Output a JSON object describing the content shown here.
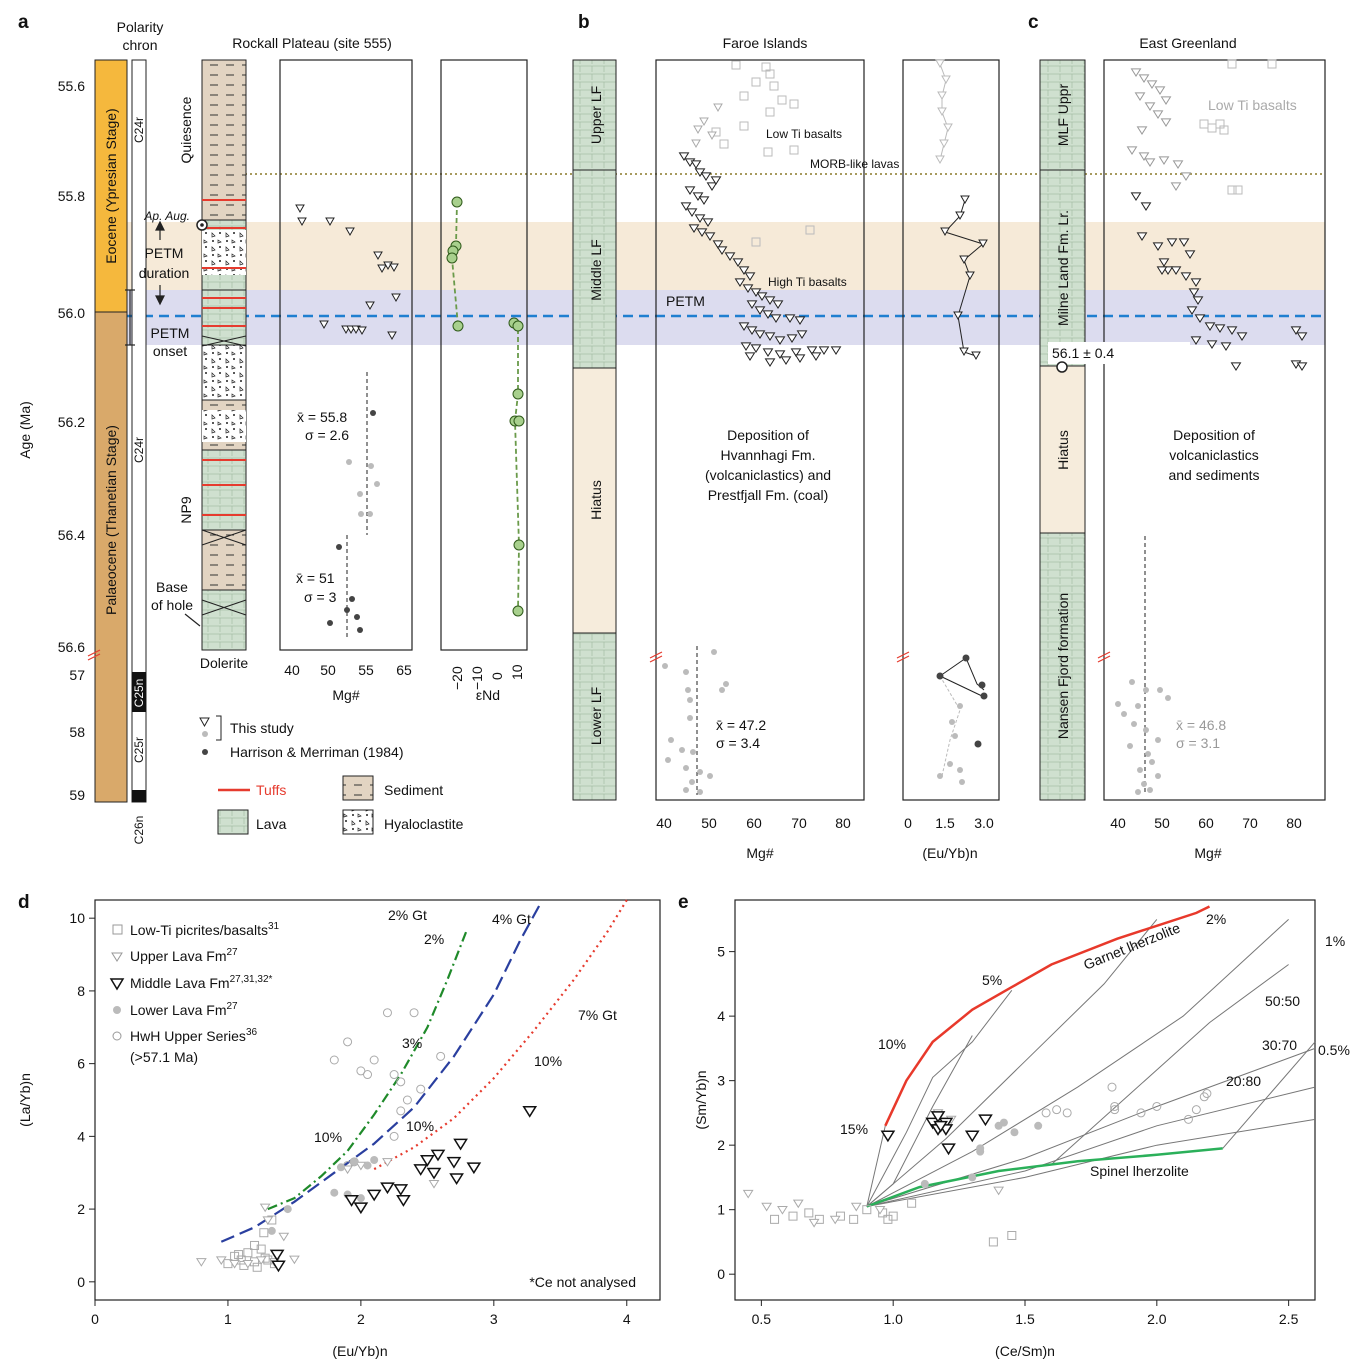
{
  "panel_letters": {
    "a": "a",
    "b": "b",
    "c": "c",
    "d": "d",
    "e": "e"
  },
  "headers": {
    "polarity": [
      "Polarity",
      "chron"
    ],
    "rockall": "Rockall Plateau (site 555)",
    "faroe": "Faroe Islands",
    "greenland": "East Greenland"
  },
  "age_axis": {
    "label": "Age (Ma)",
    "upper_ticks": [
      "55.6",
      "55.8",
      "56.0",
      "56.2",
      "56.4",
      "56.6"
    ],
    "lower_ticks": [
      "57",
      "58",
      "59"
    ]
  },
  "column_a": {
    "eocene": "Eocene (Ypresian Stage)",
    "palaeocene": "Palaeocene (Thanetian Stage)",
    "chrons": [
      "C24r",
      "C24r",
      "C25n",
      "C25r",
      "C26n"
    ],
    "quiesence": "Quiesence",
    "np9": "NP9",
    "ap_aug": "Ap. Aug.",
    "petm_duration": [
      "PETM",
      "duration"
    ],
    "petm_onset": [
      "PETM",
      "onset"
    ],
    "base_of_hole": [
      "Base",
      "of hole"
    ],
    "dolerite": "Dolerite"
  },
  "rockall_mg": {
    "xlabel": "Mg#",
    "ticks": [
      "40",
      "50",
      "55",
      "65"
    ],
    "stat_upper": [
      "x̄ = 55.8",
      "σ = 2.6"
    ],
    "stat_lower": [
      "x̄ = 51",
      "σ = 3"
    ]
  },
  "rockall_end": {
    "xlabel": "εNd",
    "ticks": [
      "−20",
      "−10",
      "0",
      "10"
    ]
  },
  "legend_a": {
    "this_study": "This study",
    "harrison": "Harrison & Merriman (1984)",
    "tuffs": "Tuffs",
    "sediment": "Sediment",
    "lava": "Lava",
    "hyaloclastite": "Hyaloclastite"
  },
  "faroe_column": {
    "upper": "Upper LF",
    "middle": "Middle LF",
    "hiatus": "Hiatus",
    "lower": "Lower LF"
  },
  "faroe_mg": {
    "xlabel": "Mg#",
    "ticks": [
      "40",
      "50",
      "60",
      "70",
      "80"
    ],
    "low_ti": "Low Ti basalts",
    "morb": "MORB-like lavas",
    "high_ti": "High Ti basalts",
    "petm": "PETM",
    "deposition": [
      "Deposition of",
      "Hvannhagi Fm.",
      "(volcaniclastics) and",
      "Prestfjall Fm. (coal)"
    ],
    "stat": [
      "x̄ = 47.2",
      "σ = 3.4"
    ]
  },
  "faroe_euyb": {
    "xlabel": "(Eu/Yb)n",
    "ticks": [
      "0",
      "1.5",
      "3.0"
    ]
  },
  "greenland_column": {
    "uppr": "MLF Uppr",
    "lr": "Milne Land Fm. Lr.",
    "hiatus": "Hiatus",
    "nansen": "Nansen Fjord formation"
  },
  "greenland_mg": {
    "xlabel": "Mg#",
    "ticks": [
      "40",
      "50",
      "60",
      "70",
      "80"
    ],
    "low_ti": "Low Ti basalts",
    "age": "56.1 ± 0.4",
    "deposition": [
      "Deposition of",
      "volcaniclastics",
      "and sediments"
    ],
    "stat": [
      "x̄ = 46.8",
      "σ = 3.1"
    ]
  },
  "colors": {
    "eocene": "#f5b83d",
    "palaeocene": "#d9a96a",
    "petm_band": "#f6ead8",
    "onset_band": "#dcdcef",
    "petm_line": "#1f7fd0",
    "hiatus": "#f6ecdc",
    "lava": "#cfe0cf",
    "sediment": "#e2d4c2",
    "tuff": "#e63b2e",
    "green_point": "#a8d08d",
    "garnet": "#e8392b",
    "spinel": "#2bb05a"
  },
  "chart_data": [
    {
      "panel": "d",
      "type": "scatter",
      "xlabel": "(Eu/Yb)n",
      "ylabel": "(La/Yb)n",
      "xlim": [
        0,
        4.25
      ],
      "ylim": [
        -0.5,
        10.5
      ],
      "xticks": [
        "0",
        "1",
        "2",
        "3",
        "4"
      ],
      "yticks": [
        "0",
        "2",
        "4",
        "6",
        "8",
        "10"
      ],
      "legend": [
        {
          "label": "Low-Ti picrites/basalts",
          "sup": "31"
        },
        {
          "label": "Upper Lava Fm",
          "sup": "27"
        },
        {
          "label": "Middle Lava Fm",
          "sup": "27,31,32*"
        },
        {
          "label": "Lower Lava Fm",
          "sup": "27"
        },
        {
          "label": "HwH Upper Series",
          "sup": "36"
        },
        {
          "label": "(>57.1 Ma)",
          "sup": ""
        }
      ],
      "note": "*Ce not analysed",
      "curve_labels": {
        "gt2": "2% Gt",
        "gt4": "4% Gt",
        "gt7": "7% Gt",
        "p2": "2%",
        "p3": "3%",
        "p10a": "10%",
        "p10b": "10%",
        "p10c": "10%"
      },
      "series": {
        "low_ti": [
          [
            1.0,
            0.5
          ],
          [
            1.05,
            0.7
          ],
          [
            1.1,
            0.6
          ],
          [
            1.15,
            0.8
          ],
          [
            1.2,
            0.55
          ],
          [
            1.25,
            0.9
          ],
          [
            1.28,
            0.65
          ],
          [
            1.2,
            1.0
          ],
          [
            1.22,
            0.4
          ],
          [
            1.3,
            0.6
          ],
          [
            1.35,
            0.5
          ],
          [
            1.12,
            0.45
          ],
          [
            1.08,
            0.75
          ],
          [
            1.27,
            1.35
          ],
          [
            1.33,
            1.7
          ]
        ],
        "upper": [
          [
            0.8,
            0.55
          ],
          [
            0.95,
            0.6
          ],
          [
            1.05,
            0.5
          ],
          [
            1.15,
            0.5
          ],
          [
            1.25,
            0.6
          ],
          [
            1.35,
            0.55
          ],
          [
            1.5,
            0.62
          ],
          [
            1.42,
            1.25
          ],
          [
            1.3,
            1.7
          ],
          [
            1.28,
            2.05
          ],
          [
            1.9,
            3.1
          ],
          [
            2.0,
            3.2
          ],
          [
            2.2,
            3.3
          ],
          [
            2.55,
            2.7
          ]
        ],
        "middle": [
          [
            1.37,
            0.75
          ],
          [
            1.38,
            0.45
          ],
          [
            1.93,
            2.25
          ],
          [
            2.0,
            2.05
          ],
          [
            2.1,
            2.4
          ],
          [
            2.2,
            2.6
          ],
          [
            2.3,
            2.55
          ],
          [
            2.32,
            2.25
          ],
          [
            2.45,
            3.1
          ],
          [
            2.5,
            3.35
          ],
          [
            2.55,
            3.0
          ],
          [
            2.58,
            3.5
          ],
          [
            2.7,
            3.3
          ],
          [
            2.72,
            2.85
          ],
          [
            2.75,
            3.8
          ],
          [
            2.85,
            3.15
          ],
          [
            3.27,
            4.7
          ]
        ],
        "lower": [
          [
            1.33,
            1.4
          ],
          [
            1.45,
            2.0
          ],
          [
            1.8,
            2.45
          ],
          [
            1.85,
            3.15
          ],
          [
            1.95,
            3.3
          ],
          [
            2.05,
            3.2
          ],
          [
            2.1,
            3.35
          ],
          [
            1.9,
            2.4
          ],
          [
            2.0,
            2.3
          ]
        ],
        "hwh": [
          [
            1.8,
            6.1
          ],
          [
            1.9,
            6.6
          ],
          [
            2.0,
            5.8
          ],
          [
            2.05,
            5.7
          ],
          [
            2.1,
            6.1
          ],
          [
            2.2,
            7.4
          ],
          [
            2.25,
            5.7
          ],
          [
            2.3,
            5.5
          ],
          [
            2.3,
            4.7
          ],
          [
            2.35,
            5.0
          ],
          [
            2.25,
            4.0
          ],
          [
            2.45,
            5.3
          ],
          [
            2.6,
            6.2
          ],
          [
            2.4,
            7.4
          ],
          [
            1.95,
            3.3
          ],
          [
            1.9,
            3.2
          ]
        ]
      },
      "curves": {
        "gt2": [
          [
            1.3,
            2.0
          ],
          [
            1.5,
            2.3
          ],
          [
            1.7,
            2.9
          ],
          [
            1.9,
            3.6
          ],
          [
            2.1,
            4.6
          ],
          [
            2.3,
            5.7
          ],
          [
            2.5,
            7.0
          ],
          [
            2.65,
            8.3
          ],
          [
            2.8,
            9.7
          ]
        ],
        "gt4": [
          [
            0.95,
            1.1
          ],
          [
            1.2,
            1.5
          ],
          [
            1.5,
            2.2
          ],
          [
            1.8,
            3.0
          ],
          [
            2.1,
            3.8
          ],
          [
            2.4,
            4.8
          ],
          [
            2.7,
            6.2
          ],
          [
            3.0,
            7.9
          ],
          [
            3.2,
            9.4
          ],
          [
            3.35,
            10.4
          ]
        ],
        "gt7": [
          [
            2.1,
            3.1
          ],
          [
            2.4,
            3.7
          ],
          [
            2.7,
            4.5
          ],
          [
            3.0,
            5.6
          ],
          [
            3.3,
            6.9
          ],
          [
            3.6,
            8.3
          ],
          [
            3.85,
            9.6
          ],
          [
            4.0,
            10.5
          ]
        ]
      }
    },
    {
      "panel": "e",
      "type": "scatter",
      "xlabel": "(Ce/Sm)n",
      "ylabel": "(Sm/Yb)n",
      "xlim": [
        0.4,
        2.6
      ],
      "ylim": [
        -0.4,
        5.8
      ],
      "xticks": [
        "0.5",
        "1.0",
        "1.5",
        "2.0",
        "2.5"
      ],
      "yticks": [
        "0",
        "1",
        "2",
        "3",
        "4",
        "5"
      ],
      "labels": {
        "garnet": "Garnet lherzolite",
        "spinel": "Spinel lherzolite",
        "p15": "15%",
        "p10": "10%",
        "p5": "5%",
        "p2": "2%",
        "p1": "1%",
        "p05": "0.5%",
        "m5050": "50:50",
        "m3070": "30:70",
        "m2080": "20:80"
      },
      "garnet_curve": [
        [
          0.97,
          2.3
        ],
        [
          1.05,
          3.0
        ],
        [
          1.15,
          3.6
        ],
        [
          1.3,
          4.1
        ],
        [
          1.45,
          4.45
        ],
        [
          1.6,
          4.8
        ],
        [
          1.85,
          5.2
        ],
        [
          2.15,
          5.6
        ],
        [
          2.2,
          5.7
        ]
      ],
      "spinel_curve": [
        [
          0.9,
          1.05
        ],
        [
          1.1,
          1.35
        ],
        [
          1.4,
          1.6
        ],
        [
          1.7,
          1.75
        ],
        [
          2.0,
          1.85
        ],
        [
          2.25,
          1.95
        ]
      ],
      "series": {
        "low_ti": [
          [
            0.55,
            0.85
          ],
          [
            0.62,
            0.9
          ],
          [
            0.68,
            0.95
          ],
          [
            0.72,
            0.85
          ],
          [
            0.8,
            0.9
          ],
          [
            0.85,
            0.85
          ],
          [
            0.9,
            1.0
          ],
          [
            0.96,
            0.95
          ],
          [
            0.98,
            0.85
          ],
          [
            1.07,
            1.1
          ],
          [
            1.38,
            0.5
          ],
          [
            1.45,
            0.6
          ],
          [
            1.0,
            0.9
          ]
        ],
        "upper": [
          [
            0.45,
            1.25
          ],
          [
            0.52,
            1.05
          ],
          [
            0.58,
            1.0
          ],
          [
            0.64,
            1.1
          ],
          [
            0.7,
            0.8
          ],
          [
            0.78,
            0.85
          ],
          [
            0.86,
            1.05
          ],
          [
            0.95,
            1.0
          ],
          [
            1.4,
            1.3
          ],
          [
            1.22,
            2.4
          ],
          [
            1.17,
            2.5
          ]
        ],
        "middle": [
          [
            0.98,
            2.15
          ],
          [
            1.15,
            2.35
          ],
          [
            1.17,
            2.25
          ],
          [
            1.2,
            2.35
          ],
          [
            1.2,
            2.25
          ],
          [
            1.21,
            1.95
          ],
          [
            1.3,
            2.15
          ],
          [
            1.35,
            2.4
          ],
          [
            1.17,
            2.45
          ],
          [
            1.18,
            2.3
          ]
        ],
        "lower": [
          [
            1.12,
            1.4
          ],
          [
            1.3,
            1.5
          ],
          [
            1.33,
            1.95
          ],
          [
            1.33,
            1.9
          ],
          [
            1.4,
            2.3
          ],
          [
            1.42,
            2.35
          ],
          [
            1.46,
            2.2
          ],
          [
            1.55,
            2.3
          ]
        ],
        "hwh": [
          [
            1.58,
            2.5
          ],
          [
            1.62,
            2.55
          ],
          [
            1.66,
            2.5
          ],
          [
            1.83,
            2.9
          ],
          [
            1.84,
            2.6
          ],
          [
            1.84,
            2.55
          ],
          [
            1.94,
            2.5
          ],
          [
            2.0,
            2.6
          ],
          [
            2.12,
            2.4
          ],
          [
            2.15,
            2.55
          ],
          [
            2.18,
            2.75
          ],
          [
            2.19,
            2.8
          ]
        ]
      }
    }
  ]
}
